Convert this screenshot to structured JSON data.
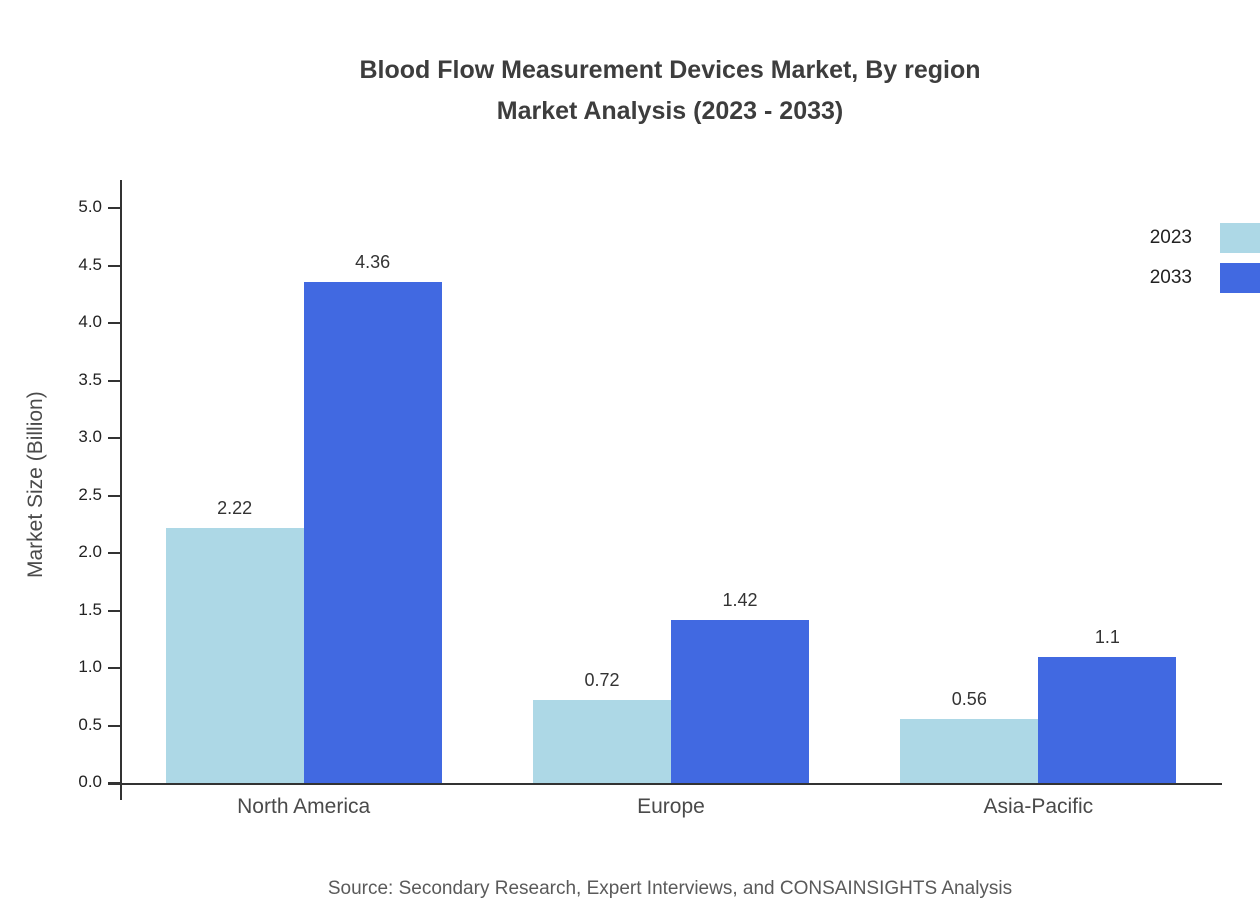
{
  "title": {
    "line1": "Blood Flow Measurement Devices Market, By region",
    "line2": "Market Analysis (2023 - 2033)"
  },
  "source": "Source: Secondary Research, Expert Interviews, and CONSAINSIGHTS Analysis",
  "chart_data": {
    "type": "bar",
    "categories": [
      "North America",
      "Europe",
      "Asia-Pacific"
    ],
    "series": [
      {
        "name": "2023",
        "color": "#ADD8E6",
        "values": [
          2.22,
          0.72,
          0.56
        ],
        "labels": [
          "2.22",
          "0.72",
          "0.56"
        ]
      },
      {
        "name": "2033",
        "color": "#4169E1",
        "values": [
          4.36,
          1.42,
          1.1
        ],
        "labels": [
          "4.36",
          "1.42",
          "1.1"
        ]
      }
    ],
    "xlabel": "",
    "ylabel": "Market Size (Billion)",
    "ylim": [
      0,
      5.0
    ],
    "ytick_step": 0.5,
    "ytick_labels": [
      "0.0",
      "0.5",
      "1.0",
      "1.5",
      "2.0",
      "2.5",
      "3.0",
      "3.5",
      "4.0",
      "4.5",
      "5.0"
    ],
    "grid": false,
    "legend_position": "top-right"
  }
}
